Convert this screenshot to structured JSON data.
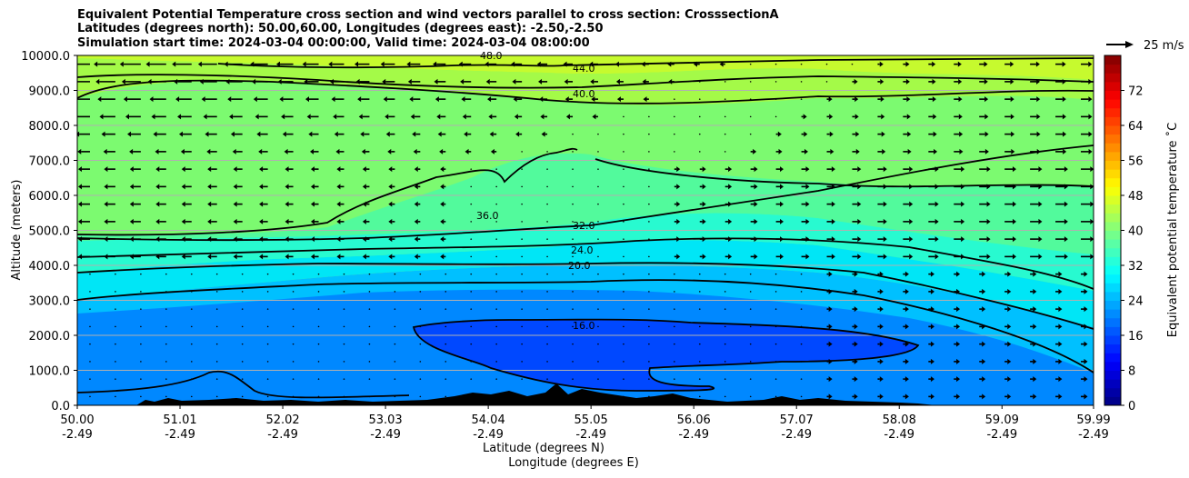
{
  "title": {
    "line1": "Equivalent Potential Temperature cross section and wind vectors parallel to cross section: CrosssectionA",
    "line2": "Latitudes (degrees north): 50.00,60.00, Longitudes (degrees east): -2.50,-2.50",
    "line3": "Simulation start time: 2024-03-04 00:00:00, Valid time: 2024-03-04 08:00:00"
  },
  "chart_data": {
    "type": "heatmap",
    "title": "Equivalent Potential Temperature cross section and wind vectors parallel to cross section: CrosssectionA",
    "xlabel_lat": "Latitude (degrees N)",
    "xlabel_lon": "Longitude (degrees E)",
    "ylabel": "Altitude (meters)",
    "ylim": [
      0,
      10000
    ],
    "xlim": [
      50.0,
      59.99
    ],
    "grid": "horizontal",
    "y_ticks": [
      "0.0",
      "1000.0",
      "2000.0",
      "3000.0",
      "4000.0",
      "5000.0",
      "6000.0",
      "7000.0",
      "8000.0",
      "9000.0",
      "10000.0"
    ],
    "y_tick_values": [
      0,
      1000,
      2000,
      3000,
      4000,
      5000,
      6000,
      7000,
      8000,
      9000,
      10000
    ],
    "x_tick_values": [
      50.0,
      51.01,
      52.02,
      53.03,
      54.04,
      55.05,
      56.06,
      57.07,
      58.08,
      59.09,
      59.99
    ],
    "x_ticks_lat": [
      "50.00",
      "51.01",
      "52.02",
      "53.03",
      "54.04",
      "55.05",
      "56.06",
      "57.07",
      "58.08",
      "59.09",
      "59.99"
    ],
    "x_ticks_lon": [
      "-2.49",
      "-2.49",
      "-2.49",
      "-2.49",
      "-2.49",
      "-2.49",
      "-2.49",
      "-2.49",
      "-2.49",
      "-2.49",
      "-2.49"
    ],
    "colorbar": {
      "label": "Equivalent potential temperature ˚C",
      "range": [
        0,
        80
      ],
      "ticks": [
        "0",
        "8",
        "16",
        "24",
        "32",
        "40",
        "48",
        "56",
        "64",
        "72"
      ],
      "tick_values": [
        0,
        8,
        16,
        24,
        32,
        40,
        48,
        56,
        64,
        72
      ]
    },
    "wind_key": {
      "label": "25 m/s",
      "speed_ms": 25
    },
    "contour_levels": [
      {
        "value": 16,
        "label": "16.0"
      },
      {
        "value": 20,
        "label": "20.0"
      },
      {
        "value": 24,
        "label": "24.0"
      },
      {
        "value": 32,
        "label": "32.0"
      },
      {
        "value": 36,
        "label": "36.0"
      },
      {
        "value": 40,
        "label": "40.0"
      },
      {
        "value": 44,
        "label": "44.0"
      },
      {
        "value": 48,
        "label": "48.0"
      }
    ],
    "theta_e_levels_by_altitude": [
      {
        "altitude_m": 0,
        "theta_e_c": 20
      },
      {
        "altitude_m": 1000,
        "theta_e_c": 16
      },
      {
        "altitude_m": 2000,
        "theta_e_c": 16
      },
      {
        "altitude_m": 3000,
        "theta_e_c": 20
      },
      {
        "altitude_m": 4000,
        "theta_e_c": 24
      },
      {
        "altitude_m": 5000,
        "theta_e_c": 32
      },
      {
        "altitude_m": 6000,
        "theta_e_c": 36
      },
      {
        "altitude_m": 7000,
        "theta_e_c": 36
      },
      {
        "altitude_m": 8000,
        "theta_e_c": 40
      },
      {
        "altitude_m": 9000,
        "theta_e_c": 44
      },
      {
        "altitude_m": 10000,
        "theta_e_c": 48
      }
    ],
    "wind_summary": "Strong northward-opposing (leftward) winds aloft near 8000–10000 m at southern latitudes; weak winds at low levels; rightward flow at higher latitudes"
  },
  "colors": {
    "contour": "#000000",
    "terrain": "#000000",
    "grid": "#b0b0b0"
  }
}
